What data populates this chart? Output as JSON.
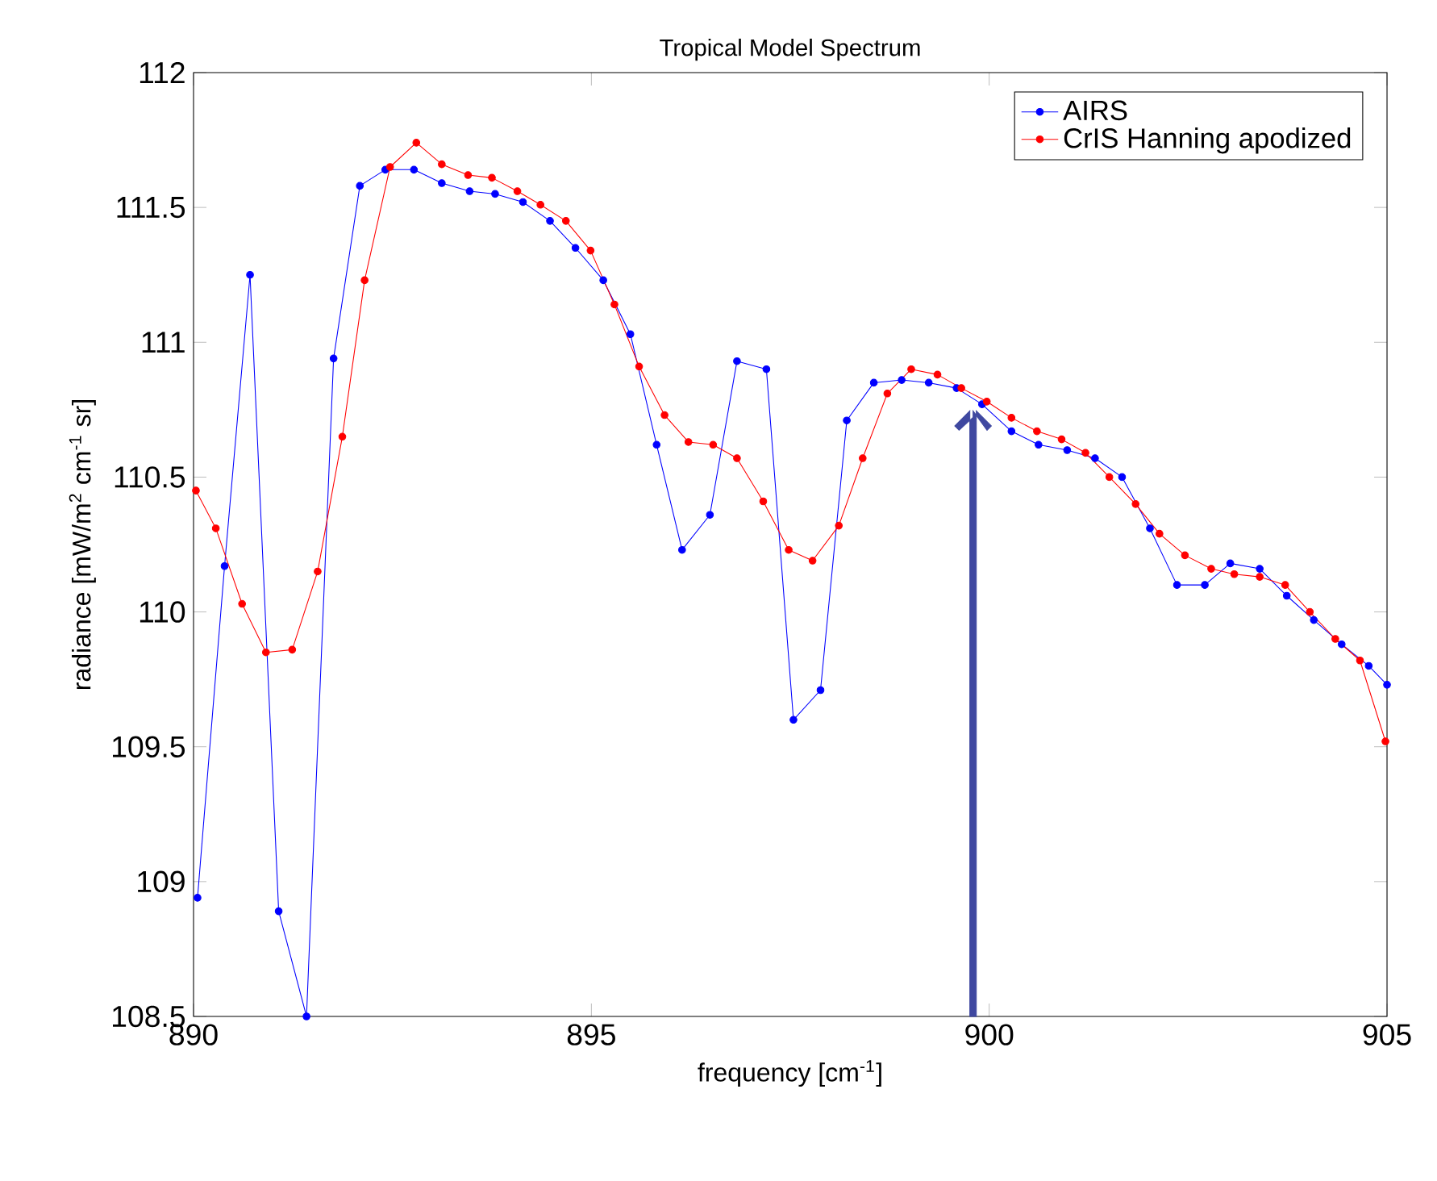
{
  "chart_data": {
    "type": "line",
    "title": "Tropical Model Spectrum",
    "xlabel": "frequency [cm$^{-1}$]",
    "ylabel": "radiance [mW/m$^{2}$ cm$^{-1}$ sr]",
    "xlim": [
      890,
      905
    ],
    "ylim": [
      108.5,
      112
    ],
    "xticks": [
      890,
      895,
      900,
      905
    ],
    "yticks": [
      108.5,
      109,
      109.5,
      110,
      110.5,
      111,
      111.5,
      112
    ],
    "grid": false,
    "legend": "top right",
    "marker": "circle",
    "line_style": "solid",
    "series": [
      {
        "name": "AIRS",
        "color": "#0000ff",
        "x": [
          890.05,
          890.39,
          890.71,
          891.07,
          891.42,
          891.76,
          892.09,
          892.41,
          892.77,
          893.12,
          893.47,
          893.79,
          894.14,
          894.48,
          894.8,
          895.15,
          895.49,
          895.82,
          896.14,
          896.49,
          896.83,
          897.2,
          897.54,
          897.88,
          898.21,
          898.55,
          898.9,
          899.24,
          899.59,
          899.91,
          900.28,
          900.62,
          900.98,
          901.33,
          901.67,
          902.02,
          902.36,
          902.71,
          903.03,
          903.4,
          903.74,
          904.08,
          904.43,
          904.77,
          905.0
        ],
        "values": [
          108.94,
          110.17,
          111.25,
          108.89,
          108.5,
          110.94,
          111.58,
          111.64,
          111.64,
          111.59,
          111.56,
          111.55,
          111.52,
          111.45,
          111.35,
          111.23,
          111.03,
          110.62,
          110.23,
          110.36,
          110.93,
          110.9,
          109.6,
          109.71,
          110.71,
          110.85,
          110.86,
          110.85,
          110.83,
          110.77,
          110.67,
          110.62,
          110.6,
          110.57,
          110.5,
          110.31,
          110.1,
          110.1,
          110.18,
          110.16,
          110.06,
          109.97,
          109.88,
          109.8,
          109.73
        ]
      },
      {
        "name": "CrIS Hanning apodized",
        "color": "#ff0000",
        "x": [
          890.03,
          890.28,
          890.61,
          890.91,
          891.24,
          891.56,
          891.87,
          892.15,
          892.47,
          892.8,
          893.12,
          893.45,
          893.75,
          894.07,
          894.36,
          894.68,
          894.99,
          895.29,
          895.6,
          895.92,
          896.22,
          896.53,
          896.83,
          897.16,
          897.48,
          897.78,
          898.11,
          898.41,
          898.72,
          899.02,
          899.35,
          899.65,
          899.97,
          900.28,
          900.6,
          900.91,
          901.21,
          901.51,
          901.84,
          902.14,
          902.46,
          902.79,
          903.08,
          903.4,
          903.72,
          904.03,
          904.35,
          904.66,
          904.98
        ],
        "values": [
          110.45,
          110.31,
          110.03,
          109.85,
          109.86,
          110.15,
          110.65,
          111.23,
          111.65,
          111.74,
          111.66,
          111.62,
          111.61,
          111.56,
          111.51,
          111.45,
          111.34,
          111.14,
          110.91,
          110.73,
          110.63,
          110.62,
          110.57,
          110.41,
          110.23,
          110.19,
          110.32,
          110.57,
          110.81,
          110.9,
          110.88,
          110.83,
          110.78,
          110.72,
          110.67,
          110.64,
          110.59,
          110.5,
          110.4,
          110.29,
          110.21,
          110.16,
          110.14,
          110.13,
          110.1,
          110.0,
          109.9,
          109.82,
          109.52
        ]
      }
    ]
  }
}
